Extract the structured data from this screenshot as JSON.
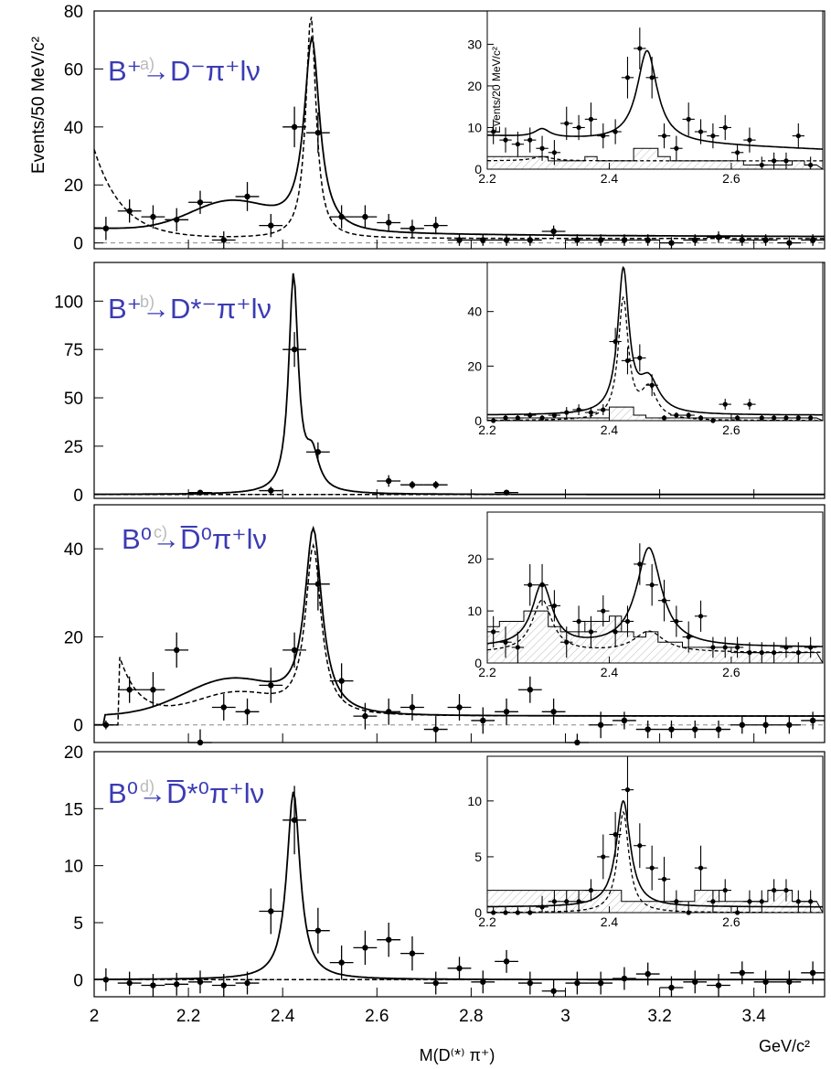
{
  "figure": {
    "ylabel": "Events/50 MeV/c²",
    "xlabel": "M(D⁽*⁾ π⁺)",
    "xunit": "GeV/c²",
    "inset_ylabel": "Events/20 MeV/c²",
    "x_ticks": [
      2,
      2.2,
      2.4,
      2.6,
      2.8,
      3,
      3.2,
      3.4
    ],
    "inset_x_ticks": [
      2.2,
      2.4,
      2.6
    ]
  },
  "chart_data": [
    {
      "type": "scatter",
      "panel": "a)",
      "title": "B⁺→D⁻π⁺lν",
      "xlim": [
        2.0,
        3.55
      ],
      "ylim": [
        -2,
        80
      ],
      "yticks": [
        0,
        20,
        40,
        60,
        80
      ],
      "x": [
        2.025,
        2.075,
        2.125,
        2.175,
        2.225,
        2.275,
        2.325,
        2.375,
        2.425,
        2.475,
        2.525,
        2.575,
        2.625,
        2.675,
        2.725,
        2.775,
        2.825,
        2.875,
        2.925,
        2.975,
        3.025,
        3.075,
        3.125,
        3.175,
        3.225,
        3.275,
        3.325,
        3.375,
        3.425,
        3.475,
        3.525
      ],
      "y": [
        5,
        11,
        9,
        8,
        14,
        1,
        16,
        6,
        40,
        38,
        9,
        9,
        7,
        5,
        6,
        1,
        1,
        1,
        1,
        4,
        1,
        1,
        1,
        1,
        0,
        1,
        2,
        1,
        1,
        0,
        1
      ],
      "err": [
        4,
        4,
        4,
        4,
        4,
        3,
        5,
        4,
        7,
        7,
        4,
        4,
        3,
        3,
        3,
        2,
        2,
        2,
        2,
        2,
        2,
        2,
        2,
        2,
        2,
        2,
        2,
        2,
        2,
        2,
        2
      ],
      "inset": {
        "xlim": [
          2.2,
          2.75
        ],
        "ylim": [
          0,
          38
        ],
        "yticks": [
          0,
          10,
          20,
          30
        ],
        "x": [
          2.21,
          2.23,
          2.25,
          2.27,
          2.29,
          2.31,
          2.33,
          2.35,
          2.37,
          2.39,
          2.41,
          2.43,
          2.45,
          2.47,
          2.49,
          2.51,
          2.53,
          2.55,
          2.57,
          2.59,
          2.61,
          2.63,
          2.65,
          2.67,
          2.69,
          2.71,
          2.73
        ],
        "y": [
          9,
          7,
          6,
          7,
          5,
          4,
          11,
          10,
          12,
          8,
          9,
          22,
          29,
          22,
          8,
          5,
          12,
          9,
          8,
          10,
          4,
          7,
          1,
          2,
          2,
          8,
          1
        ],
        "err": [
          3,
          3,
          3,
          3,
          3,
          3,
          4,
          3,
          4,
          3,
          3,
          5,
          5,
          5,
          3,
          3,
          4,
          3,
          3,
          3,
          2,
          3,
          2,
          2,
          2,
          3,
          2
        ]
      }
    },
    {
      "type": "scatter",
      "panel": "b)",
      "title": "B⁺→D*⁻π⁺lν",
      "xlim": [
        2.0,
        3.55
      ],
      "ylim": [
        -2,
        120
      ],
      "yticks": [
        0,
        25,
        50,
        75,
        100
      ],
      "x": [
        2.225,
        2.375,
        2.425,
        2.475,
        2.625,
        2.675,
        2.725,
        2.875
      ],
      "y": [
        1,
        2,
        75,
        22,
        7,
        5,
        5,
        1
      ],
      "err": [
        1,
        2,
        9,
        5,
        3,
        2,
        2,
        1
      ],
      "inset": {
        "xlim": [
          2.2,
          2.75
        ],
        "ylim": [
          0,
          58
        ],
        "yticks": [
          0,
          20,
          40
        ],
        "x": [
          2.21,
          2.23,
          2.25,
          2.27,
          2.29,
          2.31,
          2.33,
          2.35,
          2.37,
          2.39,
          2.41,
          2.43,
          2.45,
          2.47,
          2.49,
          2.51,
          2.53,
          2.55,
          2.57,
          2.59,
          2.61,
          2.63,
          2.65,
          2.67,
          2.69,
          2.71,
          2.73
        ],
        "y": [
          0,
          1,
          1,
          2,
          1,
          2,
          3,
          4,
          3,
          4,
          29,
          22,
          23,
          13,
          1,
          2,
          2,
          1,
          0,
          6,
          1,
          6,
          1,
          1,
          1,
          1,
          1
        ],
        "err": [
          1,
          1,
          1,
          1,
          1,
          1,
          2,
          2,
          2,
          2,
          5,
          5,
          5,
          4,
          1,
          1,
          1,
          1,
          1,
          2,
          1,
          2,
          1,
          1,
          1,
          1,
          1
        ]
      }
    },
    {
      "type": "scatter",
      "panel": "c)",
      "title": "B⁰→D̅⁰π⁺lν",
      "xlim": [
        2.0,
        3.55
      ],
      "ylim": [
        -4,
        50
      ],
      "yticks": [
        0,
        20,
        40
      ],
      "x": [
        2.025,
        2.075,
        2.125,
        2.175,
        2.225,
        2.275,
        2.325,
        2.375,
        2.425,
        2.475,
        2.525,
        2.575,
        2.625,
        2.675,
        2.725,
        2.775,
        2.825,
        2.875,
        2.925,
        2.975,
        3.025,
        3.075,
        3.125,
        3.175,
        3.225,
        3.275,
        3.325,
        3.375,
        3.425,
        3.475,
        3.525
      ],
      "y": [
        0,
        8,
        8,
        17,
        -4,
        4,
        3,
        9,
        17,
        32,
        10,
        2,
        3,
        4,
        -1,
        4,
        1,
        3,
        8,
        3,
        -4,
        0,
        1,
        -1,
        -1,
        -1,
        -1,
        0,
        0,
        0,
        1
      ],
      "err": [
        1,
        3,
        4,
        4,
        3,
        3,
        3,
        4,
        4,
        6,
        4,
        3,
        3,
        3,
        3,
        3,
        3,
        3,
        3,
        3,
        2,
        3,
        2,
        2,
        2,
        2,
        2,
        2,
        2,
        2,
        2
      ],
      "inset": {
        "xlim": [
          2.2,
          2.75
        ],
        "ylim": [
          0,
          29
        ],
        "yticks": [
          0,
          10,
          20
        ],
        "x": [
          2.21,
          2.23,
          2.25,
          2.27,
          2.29,
          2.31,
          2.33,
          2.35,
          2.37,
          2.39,
          2.41,
          2.43,
          2.45,
          2.47,
          2.49,
          2.51,
          2.53,
          2.55,
          2.57,
          2.59,
          2.61,
          2.63,
          2.65,
          2.67,
          2.69,
          2.71,
          2.73
        ],
        "y": [
          6,
          4,
          3,
          15,
          15,
          11,
          4,
          8,
          6,
          10,
          6,
          8,
          19,
          15,
          12,
          8,
          5,
          9,
          3,
          3,
          3,
          2,
          2,
          2,
          3,
          2,
          3
        ],
        "err": [
          3,
          3,
          3,
          4,
          4,
          3,
          3,
          3,
          3,
          3,
          3,
          3,
          4,
          4,
          4,
          3,
          3,
          3,
          2,
          2,
          2,
          2,
          2,
          2,
          2,
          2,
          2
        ]
      }
    },
    {
      "type": "scatter",
      "panel": "d)",
      "title": "B⁰→D̅*⁰π⁺lν",
      "xlim": [
        2.0,
        3.55
      ],
      "ylim": [
        -1.5,
        20
      ],
      "yticks": [
        0,
        5,
        10,
        15,
        20
      ],
      "x": [
        2.025,
        2.075,
        2.125,
        2.175,
        2.225,
        2.275,
        2.325,
        2.375,
        2.425,
        2.475,
        2.525,
        2.575,
        2.625,
        2.675,
        2.725,
        2.775,
        2.825,
        2.875,
        2.925,
        2.975,
        3.025,
        3.075,
        3.125,
        3.175,
        3.225,
        3.275,
        3.325,
        3.375,
        3.425,
        3.475,
        3.525
      ],
      "y": [
        0,
        -0.3,
        -0.5,
        -0.4,
        -0.2,
        -0.5,
        -0.3,
        6,
        14,
        4.3,
        1.5,
        2.8,
        3.5,
        2.3,
        -0.3,
        1,
        -0.2,
        1.6,
        -0.3,
        -1,
        -0.3,
        -0.3,
        0.1,
        0.5,
        -0.7,
        -0.2,
        -0.5,
        0.6,
        -0.2,
        -0.2,
        0.6
      ],
      "err": [
        1,
        1,
        1,
        1,
        1,
        1,
        1,
        2,
        3,
        2,
        1.5,
        1.5,
        1.5,
        1.5,
        1,
        1,
        1,
        1,
        1,
        1,
        1,
        1,
        1,
        1,
        1,
        1,
        1,
        1,
        1,
        1,
        1
      ],
      "inset": {
        "xlim": [
          2.2,
          2.75
        ],
        "ylim": [
          0,
          14
        ],
        "yticks": [
          0,
          5,
          10
        ],
        "x": [
          2.21,
          2.23,
          2.25,
          2.27,
          2.29,
          2.31,
          2.33,
          2.35,
          2.37,
          2.39,
          2.41,
          2.43,
          2.45,
          2.47,
          2.49,
          2.51,
          2.53,
          2.55,
          2.57,
          2.59,
          2.61,
          2.63,
          2.65,
          2.67,
          2.69,
          2.71,
          2.73
        ],
        "y": [
          0,
          0,
          0,
          0,
          0.5,
          1,
          1,
          1,
          2,
          5,
          7,
          11,
          6,
          4,
          3,
          1,
          0,
          4,
          1,
          2,
          0,
          1,
          1,
          2,
          2,
          1,
          1
        ],
        "err": [
          0.5,
          0.5,
          0.5,
          0.5,
          1,
          1,
          1,
          1,
          1,
          2,
          2,
          3,
          2,
          2,
          2,
          1,
          1,
          2,
          1,
          1,
          0.5,
          1,
          1,
          1,
          1,
          1,
          1
        ]
      }
    }
  ]
}
